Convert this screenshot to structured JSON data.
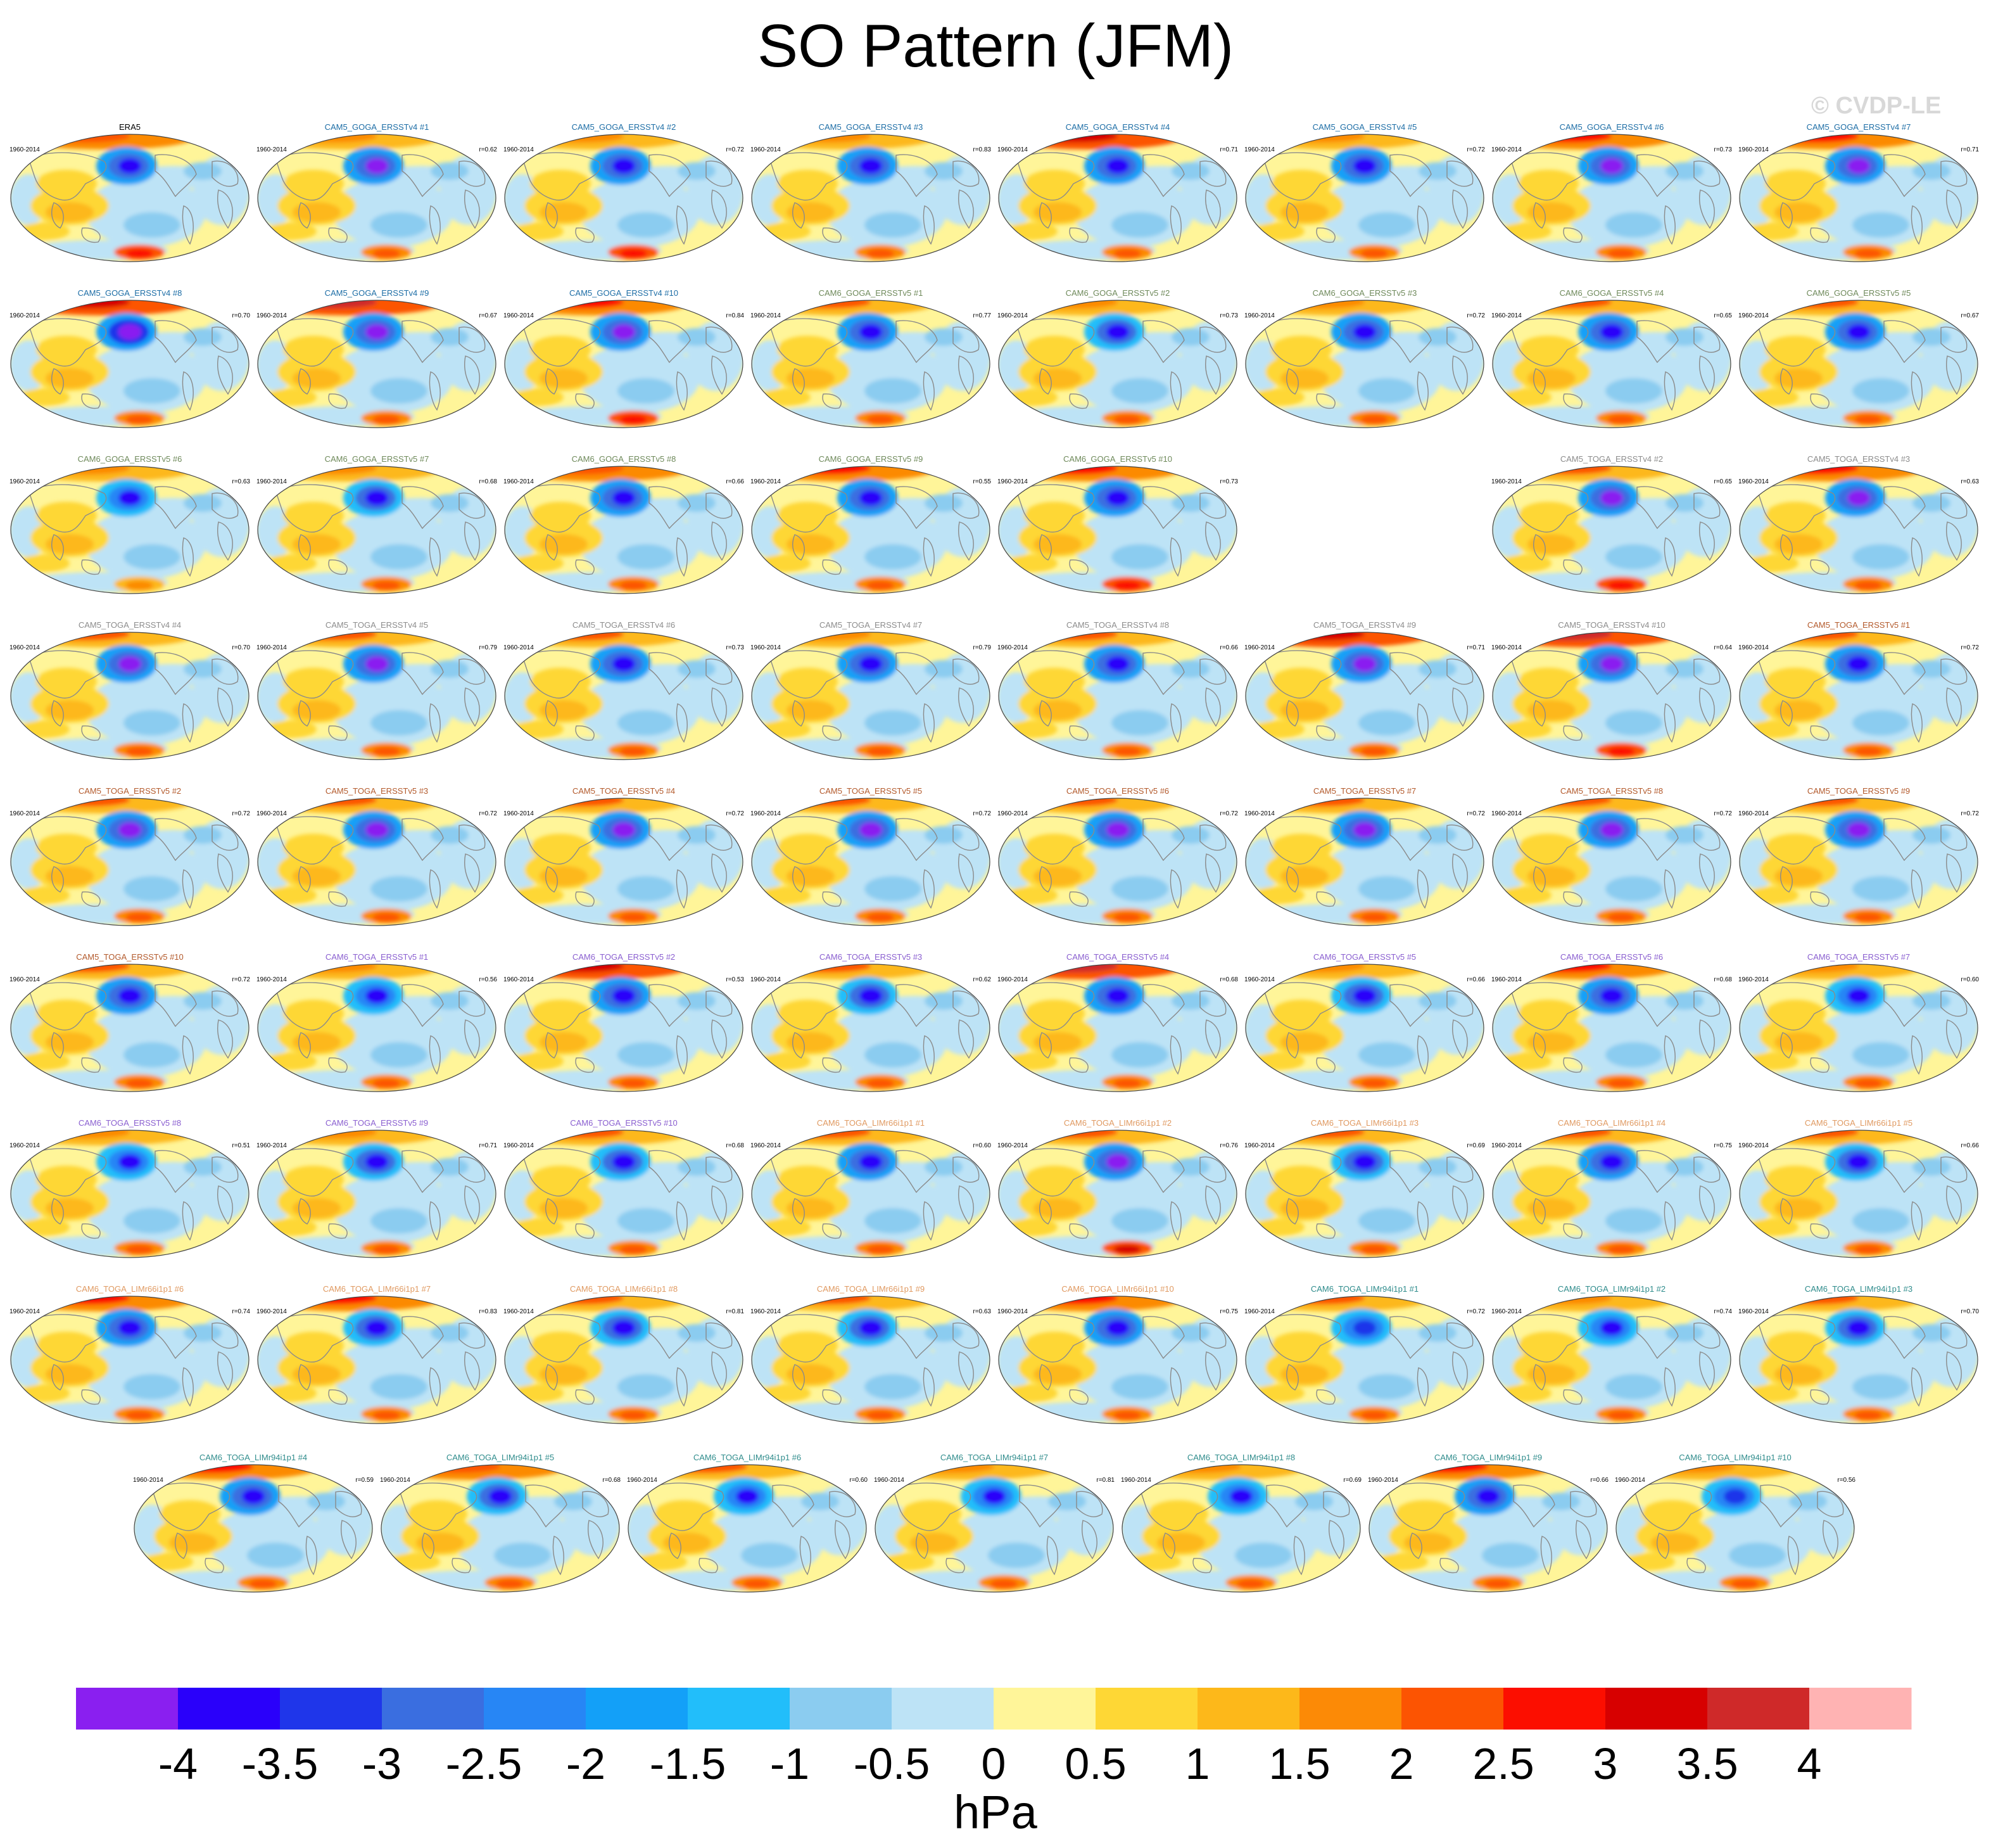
{
  "title": "SO Pattern (JFM)",
  "watermark": "© CVDP-LE",
  "chart_data": {
    "type": "heatmap",
    "title": "SO Pattern (JFM)",
    "unit": "hPa",
    "colorbar": {
      "ticks": [
        "-4",
        "-3.5",
        "-3",
        "-2.5",
        "-2",
        "-1.5",
        "-1",
        "-0.5",
        "0",
        "0.5",
        "1",
        "1.5",
        "2",
        "2.5",
        "3",
        "3.5",
        "4"
      ],
      "colors": [
        "#8a1ff0",
        "#2a00fa",
        "#1f36ea",
        "#3a6ee0",
        "#2786f5",
        "#13a0f8",
        "#22befa",
        "#8bccf0",
        "#bde3f6",
        "#fff599",
        "#fed735",
        "#fdb81a",
        "#fc8a06",
        "#fc5402",
        "#fc0e00",
        "#d70000",
        "#cf2929",
        "#ffb3b3"
      ]
    },
    "row_y": [
      210,
      472,
      734,
      996,
      1258,
      1520,
      1782,
      2044,
      2310
    ],
    "colors": {
      "ERA5": "#000000",
      "CAM5_GOGA_ERSSTv4": "#1e6ea6",
      "CAM6_GOGA_ERSSTv5": "#6f8a5b",
      "CAM5_TOGA_ERSSTv4": "#8c8c8c",
      "CAM5_TOGA_ERSSTv5": "#b35a2c",
      "CAM6_TOGA_ERSSTv5": "#8a5fd0",
      "CAM6_TOGA_LIMr66i1p1": "#e09a62",
      "CAM6_TOGA_LIMr94i1p1": "#2f8c8c"
    },
    "panels": [
      {
        "name": "ERA5",
        "color": "ERA5",
        "period": "1960-2014",
        "r": "",
        "row": 0,
        "col": 0,
        "amp": 0.9,
        "nh": 0.7,
        "sh": 0.8
      },
      {
        "name": "CAM5_GOGA_ERSSTv4 #1",
        "color": "CAM5_GOGA_ERSSTv4",
        "period": "1960-2014",
        "r": "r=0.62",
        "row": 0,
        "col": 1,
        "amp": 1.2,
        "nh": 0.4,
        "sh": 0.6
      },
      {
        "name": "CAM5_GOGA_ERSSTv4 #2",
        "color": "CAM5_GOGA_ERSSTv4",
        "period": "1960-2014",
        "r": "r=0.72",
        "row": 0,
        "col": 2,
        "amp": 1.0,
        "nh": 0.3,
        "sh": 0.7
      },
      {
        "name": "CAM5_GOGA_ERSSTv4 #3",
        "color": "CAM5_GOGA_ERSSTv4",
        "period": "1960-2014",
        "r": "r=0.83",
        "row": 0,
        "col": 3,
        "amp": 1.0,
        "nh": 0.3,
        "sh": 0.6
      },
      {
        "name": "CAM5_GOGA_ERSSTv4 #4",
        "color": "CAM5_GOGA_ERSSTv4",
        "period": "1960-2014",
        "r": "r=0.71",
        "row": 0,
        "col": 4,
        "amp": 1.0,
        "nh": 1.0,
        "sh": 0.5
      },
      {
        "name": "CAM5_GOGA_ERSSTv4 #5",
        "color": "CAM5_GOGA_ERSSTv4",
        "period": "1960-2014",
        "r": "r=0.72",
        "row": 0,
        "col": 5,
        "amp": 0.9,
        "nh": 0.3,
        "sh": 0.4
      },
      {
        "name": "CAM5_GOGA_ERSSTv4 #6",
        "color": "CAM5_GOGA_ERSSTv4",
        "period": "1960-2014",
        "r": "r=0.73",
        "row": 0,
        "col": 6,
        "amp": 1.1,
        "nh": 0.9,
        "sh": 0.6
      },
      {
        "name": "CAM5_GOGA_ERSSTv4 #7",
        "color": "CAM5_GOGA_ERSSTv4",
        "period": "1960-2014",
        "r": "r=0.71",
        "row": 0,
        "col": 7,
        "amp": 1.1,
        "nh": 0.9,
        "sh": 0.6
      },
      {
        "name": "CAM5_GOGA_ERSSTv4 #8",
        "color": "CAM5_GOGA_ERSSTv4",
        "period": "1960-2014",
        "r": "r=0.70",
        "row": 1,
        "col": 0,
        "amp": 1.3,
        "nh": 1.0,
        "sh": 0.6
      },
      {
        "name": "CAM5_GOGA_ERSSTv4 #9",
        "color": "CAM5_GOGA_ERSSTv4",
        "period": "1960-2014",
        "r": "r=0.67",
        "row": 1,
        "col": 1,
        "amp": 1.2,
        "nh": 1.3,
        "sh": 0.6
      },
      {
        "name": "CAM5_GOGA_ERSSTv4 #10",
        "color": "CAM5_GOGA_ERSSTv4",
        "period": "1960-2014",
        "r": "r=0.84",
        "row": 1,
        "col": 2,
        "amp": 1.1,
        "nh": 0.8,
        "sh": 0.7
      },
      {
        "name": "CAM6_GOGA_ERSSTv5 #1",
        "color": "CAM6_GOGA_ERSSTv5",
        "period": "1960-2014",
        "r": "r=0.77",
        "row": 1,
        "col": 3,
        "amp": 0.9,
        "nh": 0.5,
        "sh": 0.5
      },
      {
        "name": "CAM6_GOGA_ERSSTv5 #2",
        "color": "CAM6_GOGA_ERSSTv5",
        "period": "1960-2014",
        "r": "r=0.73",
        "row": 1,
        "col": 4,
        "amp": 0.8,
        "nh": 0.4,
        "sh": 0.4
      },
      {
        "name": "CAM6_GOGA_ERSSTv5 #3",
        "color": "CAM6_GOGA_ERSSTv5",
        "period": "1960-2014",
        "r": "r=0.72",
        "row": 1,
        "col": 5,
        "amp": 0.9,
        "nh": 0.3,
        "sh": 0.4
      },
      {
        "name": "CAM6_GOGA_ERSSTv5 #4",
        "color": "CAM6_GOGA_ERSSTv5",
        "period": "1960-2014",
        "r": "r=0.65",
        "row": 1,
        "col": 6,
        "amp": 1.0,
        "nh": 0.6,
        "sh": 0.5
      },
      {
        "name": "CAM6_GOGA_ERSSTv5 #5",
        "color": "CAM6_GOGA_ERSSTv5",
        "period": "1960-2014",
        "r": "r=0.67",
        "row": 1,
        "col": 7,
        "amp": 1.0,
        "nh": 0.6,
        "sh": 0.5
      },
      {
        "name": "CAM6_GOGA_ERSSTv5 #6",
        "color": "CAM6_GOGA_ERSSTv5",
        "period": "1960-2014",
        "r": "r=0.63",
        "row": 2,
        "col": 0,
        "amp": 0.7,
        "nh": 0.4,
        "sh": 0.3
      },
      {
        "name": "CAM6_GOGA_ERSSTv5 #7",
        "color": "CAM6_GOGA_ERSSTv5",
        "period": "1960-2014",
        "r": "r=0.68",
        "row": 2,
        "col": 1,
        "amp": 0.8,
        "nh": 0.4,
        "sh": 0.4
      },
      {
        "name": "CAM6_GOGA_ERSSTv5 #8",
        "color": "CAM6_GOGA_ERSSTv5",
        "period": "1960-2014",
        "r": "r=0.66",
        "row": 2,
        "col": 2,
        "amp": 0.9,
        "nh": 0.7,
        "sh": 0.6
      },
      {
        "name": "CAM6_GOGA_ERSSTv5 #9",
        "color": "CAM6_GOGA_ERSSTv5",
        "period": "1960-2014",
        "r": "r=0.55",
        "row": 2,
        "col": 3,
        "amp": 0.9,
        "nh": 0.9,
        "sh": 0.6
      },
      {
        "name": "CAM6_GOGA_ERSSTv5 #10",
        "color": "CAM6_GOGA_ERSSTv5",
        "period": "1960-2014",
        "r": "r=0.73",
        "row": 2,
        "col": 4,
        "amp": 1.0,
        "nh": 0.9,
        "sh": 0.8
      },
      {
        "name": "CAM5_TOGA_ERSSTv4 #2",
        "color": "CAM5_TOGA_ERSSTv4",
        "period": "1960-2014",
        "r": "r=0.65",
        "row": 2,
        "col": 6,
        "amp": 1.1,
        "nh": 0.6,
        "sh": 0.7
      },
      {
        "name": "CAM5_TOGA_ERSSTv4 #3",
        "color": "CAM5_TOGA_ERSSTv4",
        "period": "1960-2014",
        "r": "r=0.63",
        "row": 2,
        "col": 7,
        "amp": 1.1,
        "nh": 0.8,
        "sh": 0.6
      },
      {
        "name": "CAM5_TOGA_ERSSTv4 #4",
        "color": "CAM5_TOGA_ERSSTv4",
        "period": "1960-2014",
        "r": "r=0.70",
        "row": 3,
        "col": 0,
        "amp": 1.2,
        "nh": 0.5,
        "sh": 0.6
      },
      {
        "name": "CAM5_TOGA_ERSSTv4 #5",
        "color": "CAM5_TOGA_ERSSTv4",
        "period": "1960-2014",
        "r": "r=0.79",
        "row": 3,
        "col": 1,
        "amp": 1.1,
        "nh": 0.5,
        "sh": 0.6
      },
      {
        "name": "CAM5_TOGA_ERSSTv4 #6",
        "color": "CAM5_TOGA_ERSSTv4",
        "period": "1960-2014",
        "r": "r=0.73",
        "row": 3,
        "col": 2,
        "amp": 1.0,
        "nh": 0.5,
        "sh": 0.6
      },
      {
        "name": "CAM5_TOGA_ERSSTv4 #7",
        "color": "CAM5_TOGA_ERSSTv4",
        "period": "1960-2014",
        "r": "r=0.79",
        "row": 3,
        "col": 3,
        "amp": 0.9,
        "nh": 0.4,
        "sh": 0.6
      },
      {
        "name": "CAM5_TOGA_ERSSTv4 #8",
        "color": "CAM5_TOGA_ERSSTv4",
        "period": "1960-2014",
        "r": "r=0.66",
        "row": 3,
        "col": 4,
        "amp": 0.9,
        "nh": 0.5,
        "sh": 0.5
      },
      {
        "name": "CAM5_TOGA_ERSSTv4 #9",
        "color": "CAM5_TOGA_ERSSTv4",
        "period": "1960-2014",
        "r": "r=0.71",
        "row": 3,
        "col": 5,
        "amp": 1.1,
        "nh": 1.1,
        "sh": 0.6
      },
      {
        "name": "CAM5_TOGA_ERSSTv4 #10",
        "color": "CAM5_TOGA_ERSSTv4",
        "period": "1960-2014",
        "r": "r=0.64",
        "row": 3,
        "col": 6,
        "amp": 1.2,
        "nh": 1.3,
        "sh": 0.7
      },
      {
        "name": "CAM5_TOGA_ERSSTv5 #1",
        "color": "CAM5_TOGA_ERSSTv5",
        "period": "1960-2014",
        "r": "r=0.72",
        "row": 3,
        "col": 7,
        "amp": 1.0,
        "nh": 0.6,
        "sh": 0.5
      },
      {
        "name": "CAM5_TOGA_ERSSTv5 #2",
        "color": "CAM5_TOGA_ERSSTv5",
        "period": "1960-2014",
        "r": "r=0.72",
        "row": 4,
        "col": 0,
        "amp": 1.1,
        "nh": 0.5,
        "sh": 0.5
      },
      {
        "name": "CAM5_TOGA_ERSSTv5 #3",
        "color": "CAM5_TOGA_ERSSTv5",
        "period": "1960-2014",
        "r": "r=0.72",
        "row": 4,
        "col": 1,
        "amp": 1.1,
        "nh": 0.5,
        "sh": 0.5
      },
      {
        "name": "CAM5_TOGA_ERSSTv5 #4",
        "color": "CAM5_TOGA_ERSSTv5",
        "period": "1960-2014",
        "r": "r=0.72",
        "row": 4,
        "col": 2,
        "amp": 1.1,
        "nh": 0.5,
        "sh": 0.5
      },
      {
        "name": "CAM5_TOGA_ERSSTv5 #5",
        "color": "CAM5_TOGA_ERSSTv5",
        "period": "1960-2014",
        "r": "r=0.72",
        "row": 4,
        "col": 3,
        "amp": 1.1,
        "nh": 0.5,
        "sh": 0.5
      },
      {
        "name": "CAM5_TOGA_ERSSTv5 #6",
        "color": "CAM5_TOGA_ERSSTv5",
        "period": "1960-2014",
        "r": "r=0.72",
        "row": 4,
        "col": 4,
        "amp": 1.1,
        "nh": 0.5,
        "sh": 0.5
      },
      {
        "name": "CAM5_TOGA_ERSSTv5 #7",
        "color": "CAM5_TOGA_ERSSTv5",
        "period": "1960-2014",
        "r": "r=0.72",
        "row": 4,
        "col": 5,
        "amp": 1.1,
        "nh": 0.5,
        "sh": 0.5
      },
      {
        "name": "CAM5_TOGA_ERSSTv5 #8",
        "color": "CAM5_TOGA_ERSSTv5",
        "period": "1960-2014",
        "r": "r=0.72",
        "row": 4,
        "col": 6,
        "amp": 1.1,
        "nh": 0.5,
        "sh": 0.5
      },
      {
        "name": "CAM5_TOGA_ERSSTv5 #9",
        "color": "CAM5_TOGA_ERSSTv5",
        "period": "1960-2014",
        "r": "r=0.72",
        "row": 4,
        "col": 7,
        "amp": 1.1,
        "nh": 0.5,
        "sh": 0.5
      },
      {
        "name": "CAM5_TOGA_ERSSTv5 #10",
        "color": "CAM5_TOGA_ERSSTv5",
        "period": "1960-2014",
        "r": "r=0.72",
        "row": 5,
        "col": 0,
        "amp": 1.0,
        "nh": 0.5,
        "sh": 0.5
      },
      {
        "name": "CAM6_TOGA_ERSSTv5 #1",
        "color": "CAM6_TOGA_ERSSTv5",
        "period": "1960-2014",
        "r": "r=0.56",
        "row": 5,
        "col": 1,
        "amp": 0.7,
        "nh": 0.4,
        "sh": 0.4
      },
      {
        "name": "CAM6_TOGA_ERSSTv5 #2",
        "color": "CAM6_TOGA_ERSSTv5",
        "period": "1960-2014",
        "r": "r=0.53",
        "row": 5,
        "col": 2,
        "amp": 0.9,
        "nh": 1.1,
        "sh": 0.6
      },
      {
        "name": "CAM6_TOGA_ERSSTv5 #3",
        "color": "CAM6_TOGA_ERSSTv5",
        "period": "1960-2014",
        "r": "r=0.62",
        "row": 5,
        "col": 3,
        "amp": 0.8,
        "nh": 0.6,
        "sh": 0.5
      },
      {
        "name": "CAM6_TOGA_ERSSTv5 #4",
        "color": "CAM6_TOGA_ERSSTv5",
        "period": "1960-2014",
        "r": "r=0.68",
        "row": 5,
        "col": 4,
        "amp": 0.9,
        "nh": 1.2,
        "sh": 0.6
      },
      {
        "name": "CAM6_TOGA_ERSSTv5 #5",
        "color": "CAM6_TOGA_ERSSTv5",
        "period": "1960-2014",
        "r": "r=0.66",
        "row": 5,
        "col": 5,
        "amp": 0.8,
        "nh": 0.4,
        "sh": 0.6
      },
      {
        "name": "CAM6_TOGA_ERSSTv5 #6",
        "color": "CAM6_TOGA_ERSSTv5",
        "period": "1960-2014",
        "r": "r=0.68",
        "row": 5,
        "col": 6,
        "amp": 0.9,
        "nh": 0.9,
        "sh": 0.5
      },
      {
        "name": "CAM6_TOGA_ERSSTv5 #7",
        "color": "CAM6_TOGA_ERSSTv5",
        "period": "1960-2014",
        "r": "r=0.60",
        "row": 5,
        "col": 7,
        "amp": 0.7,
        "nh": 0.4,
        "sh": 0.4
      },
      {
        "name": "CAM6_TOGA_ERSSTv5 #8",
        "color": "CAM6_TOGA_ERSSTv5",
        "period": "1960-2014",
        "r": "r=0.51",
        "row": 6,
        "col": 0,
        "amp": 0.7,
        "nh": 0.3,
        "sh": 0.4
      },
      {
        "name": "CAM6_TOGA_ERSSTv5 #9",
        "color": "CAM6_TOGA_ERSSTv5",
        "period": "1960-2014",
        "r": "r=0.71",
        "row": 6,
        "col": 1,
        "amp": 0.8,
        "nh": 0.4,
        "sh": 0.5
      },
      {
        "name": "CAM6_TOGA_ERSSTv5 #10",
        "color": "CAM6_TOGA_ERSSTv5",
        "period": "1960-2014",
        "r": "r=0.68",
        "row": 6,
        "col": 2,
        "amp": 0.8,
        "nh": 0.6,
        "sh": 0.5
      },
      {
        "name": "CAM6_TOGA_LIMr66i1p1 #1",
        "color": "CAM6_TOGA_LIMr66i1p1",
        "period": "1960-2014",
        "r": "r=0.60",
        "row": 6,
        "col": 3,
        "amp": 0.9,
        "nh": 0.5,
        "sh": 0.6
      },
      {
        "name": "CAM6_TOGA_LIMr66i1p1 #2",
        "color": "CAM6_TOGA_LIMr66i1p1",
        "period": "1960-2014",
        "r": "r=0.76",
        "row": 6,
        "col": 4,
        "amp": 1.1,
        "nh": 0.5,
        "sh": 0.9
      },
      {
        "name": "CAM6_TOGA_LIMr66i1p1 #3",
        "color": "CAM6_TOGA_LIMr66i1p1",
        "period": "1960-2014",
        "r": "r=0.69",
        "row": 6,
        "col": 5,
        "amp": 0.8,
        "nh": 0.5,
        "sh": 0.5
      },
      {
        "name": "CAM6_TOGA_LIMr66i1p1 #4",
        "color": "CAM6_TOGA_LIMr66i1p1",
        "period": "1960-2014",
        "r": "r=0.75",
        "row": 6,
        "col": 6,
        "amp": 1.0,
        "nh": 0.6,
        "sh": 0.5
      },
      {
        "name": "CAM6_TOGA_LIMr66i1p1 #5",
        "color": "CAM6_TOGA_LIMr66i1p1",
        "period": "1960-2014",
        "r": "r=0.66",
        "row": 6,
        "col": 7,
        "amp": 0.8,
        "nh": 0.5,
        "sh": 0.5
      },
      {
        "name": "CAM6_TOGA_LIMr66i1p1 #6",
        "color": "CAM6_TOGA_LIMr66i1p1",
        "period": "1960-2014",
        "r": "r=0.74",
        "row": 7,
        "col": 0,
        "amp": 0.9,
        "nh": 0.9,
        "sh": 0.5
      },
      {
        "name": "CAM6_TOGA_LIMr66i1p1 #7",
        "color": "CAM6_TOGA_LIMr66i1p1",
        "period": "1960-2014",
        "r": "r=0.83",
        "row": 7,
        "col": 1,
        "amp": 0.8,
        "nh": 0.8,
        "sh": 0.6
      },
      {
        "name": "CAM6_TOGA_LIMr66i1p1 #8",
        "color": "CAM6_TOGA_LIMr66i1p1",
        "period": "1960-2014",
        "r": "r=0.81",
        "row": 7,
        "col": 2,
        "amp": 0.8,
        "nh": 0.5,
        "sh": 0.6
      },
      {
        "name": "CAM6_TOGA_LIMr66i1p1 #9",
        "color": "CAM6_TOGA_LIMr66i1p1",
        "period": "1960-2014",
        "r": "r=0.63",
        "row": 7,
        "col": 3,
        "amp": 0.8,
        "nh": 0.5,
        "sh": 0.6
      },
      {
        "name": "CAM6_TOGA_LIMr66i1p1 #10",
        "color": "CAM6_TOGA_LIMr66i1p1",
        "period": "1960-2014",
        "r": "r=0.75",
        "row": 7,
        "col": 4,
        "amp": 0.9,
        "nh": 0.9,
        "sh": 0.5
      },
      {
        "name": "CAM6_TOGA_LIMr94i1p1 #1",
        "color": "CAM6_TOGA_LIMr94i1p1",
        "period": "1960-2014",
        "r": "r=0.72",
        "row": 7,
        "col": 5,
        "amp": 0.6,
        "nh": 0.5,
        "sh": 0.5
      },
      {
        "name": "CAM6_TOGA_LIMr94i1p1 #2",
        "color": "CAM6_TOGA_LIMr94i1p1",
        "period": "1960-2014",
        "r": "r=0.74",
        "row": 7,
        "col": 6,
        "amp": 0.7,
        "nh": 0.4,
        "sh": 0.5
      },
      {
        "name": "CAM6_TOGA_LIMr94i1p1 #3",
        "color": "CAM6_TOGA_LIMr94i1p1",
        "period": "1960-2014",
        "r": "r=0.70",
        "row": 7,
        "col": 7,
        "amp": 0.8,
        "nh": 0.6,
        "sh": 0.5
      },
      {
        "name": "CAM6_TOGA_LIMr94i1p1 #4",
        "color": "CAM6_TOGA_LIMr94i1p1",
        "period": "1960-2014",
        "r": "r=0.59",
        "row": 8,
        "col": 0,
        "amp": 0.9,
        "nh": 0.9,
        "sh": 0.5
      },
      {
        "name": "CAM6_TOGA_LIMr94i1p1 #5",
        "color": "CAM6_TOGA_LIMr94i1p1",
        "period": "1960-2014",
        "r": "r=0.68",
        "row": 8,
        "col": 1,
        "amp": 0.8,
        "nh": 0.7,
        "sh": 0.5
      },
      {
        "name": "CAM6_TOGA_LIMr94i1p1 #6",
        "color": "CAM6_TOGA_LIMr94i1p1",
        "period": "1960-2014",
        "r": "r=0.60",
        "row": 8,
        "col": 2,
        "amp": 0.7,
        "nh": 0.5,
        "sh": 0.5
      },
      {
        "name": "CAM6_TOGA_LIMr94i1p1 #7",
        "color": "CAM6_TOGA_LIMr94i1p1",
        "period": "1960-2014",
        "r": "r=0.81",
        "row": 8,
        "col": 3,
        "amp": 0.7,
        "nh": 0.4,
        "sh": 0.6
      },
      {
        "name": "CAM6_TOGA_LIMr94i1p1 #8",
        "color": "CAM6_TOGA_LIMr94i1p1",
        "period": "1960-2014",
        "r": "r=0.69",
        "row": 8,
        "col": 4,
        "amp": 0.7,
        "nh": 0.4,
        "sh": 0.5
      },
      {
        "name": "CAM6_TOGA_LIMr94i1p1 #9",
        "color": "CAM6_TOGA_LIMr94i1p1",
        "period": "1960-2014",
        "r": "r=0.66",
        "row": 8,
        "col": 5,
        "amp": 0.9,
        "nh": 0.9,
        "sh": 0.5
      },
      {
        "name": "CAM6_TOGA_LIMr94i1p1 #10",
        "color": "CAM6_TOGA_LIMr94i1p1",
        "period": "1960-2014",
        "r": "r=0.56",
        "row": 8,
        "col": 6,
        "amp": 0.6,
        "nh": 0.4,
        "sh": 0.5
      }
    ]
  }
}
